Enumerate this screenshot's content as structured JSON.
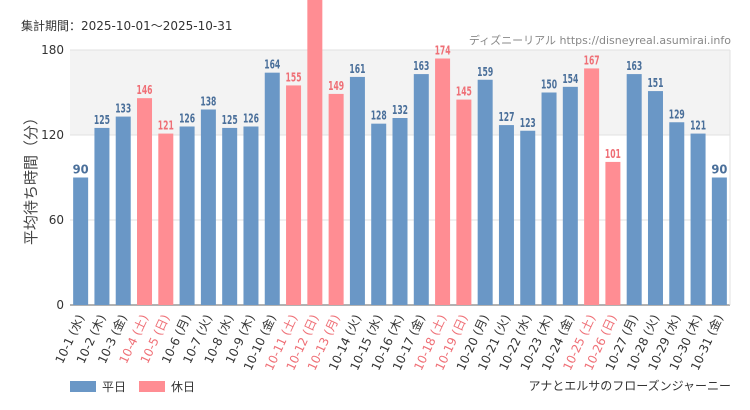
{
  "header": {
    "period_label": "集計期間：",
    "period_value": "2025-10-01〜2025-10-31",
    "source_name": "ディズニーリアル",
    "source_url": "https://disneyreal.asumirai.info"
  },
  "footer": {
    "attraction": "アナとエルサのフローズンジャーニー"
  },
  "colors": {
    "weekday": "#6a97c6",
    "holiday": "#ff8d93",
    "weekday_text": "#4a6f9a",
    "holiday_text": "#ef6f76",
    "band": "#f3f3f3"
  },
  "chart_data": {
    "type": "bar",
    "ylabel": "平均待ち時間（分）",
    "ylim": [
      0,
      180
    ],
    "yticks": [
      0,
      60,
      120,
      180
    ],
    "highlight_band": [
      120,
      180
    ],
    "legend": [
      {
        "label": "平日",
        "series": "weekday"
      },
      {
        "label": "休日",
        "series": "holiday"
      }
    ],
    "categories": [
      "10-1 (水)",
      "10-2 (木)",
      "10-3 (金)",
      "10-4 (土)",
      "10-5 (日)",
      "10-6 (月)",
      "10-7 (火)",
      "10-8 (水)",
      "10-9 (木)",
      "10-10 (金)",
      "10-11 (土)",
      "10-12 (日)",
      "10-13 (月)",
      "10-14 (火)",
      "10-15 (水)",
      "10-16 (木)",
      "10-17 (金)",
      "10-18 (土)",
      "10-19 (日)",
      "10-20 (月)",
      "10-21 (火)",
      "10-22 (水)",
      "10-23 (木)",
      "10-24 (金)",
      "10-25 (土)",
      "10-26 (日)",
      "10-27 (月)",
      "10-28 (火)",
      "10-29 (水)",
      "10-30 (木)",
      "10-31 (金)"
    ],
    "values": [
      90,
      125,
      133,
      146,
      121,
      126,
      138,
      125,
      126,
      164,
      155,
      null,
      149,
      161,
      128,
      132,
      163,
      174,
      145,
      159,
      127,
      123,
      150,
      154,
      167,
      101,
      163,
      151,
      129,
      121,
      90
    ],
    "value_labels": [
      "90",
      "125",
      "133",
      "146",
      "121",
      "126",
      "138",
      "125",
      "126",
      "164",
      "155",
      "",
      "149",
      "161",
      "128",
      "132",
      "163",
      "174",
      "145",
      "159",
      "127",
      "123",
      "150",
      "154",
      "167",
      "101",
      "163",
      "151",
      "129",
      "121",
      "90"
    ],
    "holiday": [
      false,
      false,
      false,
      true,
      true,
      false,
      false,
      false,
      false,
      false,
      true,
      true,
      true,
      false,
      false,
      false,
      false,
      true,
      true,
      false,
      false,
      false,
      false,
      false,
      true,
      true,
      false,
      false,
      false,
      false,
      false
    ]
  }
}
